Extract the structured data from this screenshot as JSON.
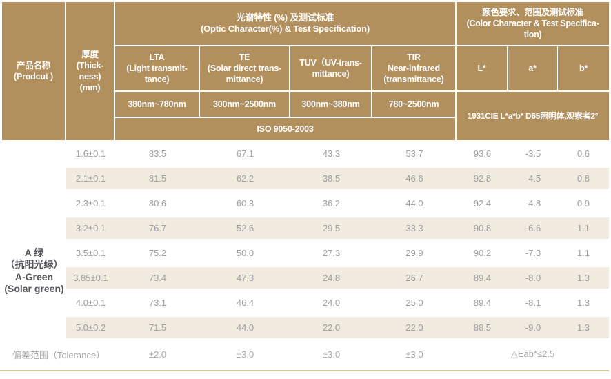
{
  "colors": {
    "header_bg": "#b2905e",
    "row_shade": "#f2ebdf",
    "body_text": "#9c9ea1",
    "product_text": "#55565a",
    "divider": "#ddc7a0"
  },
  "table": {
    "header": {
      "product": "产品名称\n(Prodcut )",
      "thickness": "厚度\n(Thick-\nness)\n(mm)",
      "optic_group": "光谱特性 (%) 及测试标准\n(Optic Character(%) & Test Specification)",
      "color_group": "颜色要求、范围及测试标准\n(Color Character & Test Specifica-\ntion)",
      "col_lta": "LTA\n(Light transmit-\ntance)",
      "col_te": "TE\n(Solar direct trans-\nmittance)",
      "col_tuv": "TUV（UV-trans-\nmittance)",
      "col_tir": "TIR\nNear-infrared\n(transmittance)",
      "col_l": "L*",
      "col_a": "a*",
      "col_b": "b*",
      "range_lta": "380nm~780nm",
      "range_te": "300nm~2500nm",
      "range_tuv": "300nm~380nm",
      "range_tir": "780~2500nm",
      "iso": "ISO 9050-2003",
      "cie": "1931CIE L*a*b* D65照明体,观察者2°"
    },
    "product_name": "A 绿\n（抗阳光绿）\nA-Green\n(Solar green)",
    "rows": [
      {
        "thickness": "1.6±0.1",
        "lta": "83.5",
        "te": "67.1",
        "tuv": "43.3",
        "tir": "53.7",
        "L": "93.6",
        "a": "-3.5",
        "b": "0.6"
      },
      {
        "thickness": "2.1±0.1",
        "lta": "81.5",
        "te": "62.2",
        "tuv": "38.5",
        "tir": "46.6",
        "L": "92.8",
        "a": "-4.5",
        "b": "0.8"
      },
      {
        "thickness": "2.3±0.1",
        "lta": "80.6",
        "te": "60.3",
        "tuv": "36.2",
        "tir": "44.0",
        "L": "92.4",
        "a": "-4.8",
        "b": "0.9"
      },
      {
        "thickness": "3.2±0.1",
        "lta": "76.7",
        "te": "52.6",
        "tuv": "29.5",
        "tir": "33.3",
        "L": "90.8",
        "a": "-6.6",
        "b": "1.1"
      },
      {
        "thickness": "3.5±0.1",
        "lta": "75.2",
        "te": "50.0",
        "tuv": "27.3",
        "tir": "29.9",
        "L": "90.2",
        "a": "-7.3",
        "b": "1.1"
      },
      {
        "thickness": "3.85±0.1",
        "lta": "73.4",
        "te": "47.3",
        "tuv": "24.8",
        "tir": "26.7",
        "L": "89.4",
        "a": "-8.0",
        "b": "1.3"
      },
      {
        "thickness": "4.0±0.1",
        "lta": "73.1",
        "te": "46.4",
        "tuv": "24.0",
        "tir": "25.0",
        "L": "89.4",
        "a": "-8.1",
        "b": "1.3"
      },
      {
        "thickness": "5.0±0.2",
        "lta": "71.5",
        "te": "44.0",
        "tuv": "22.0",
        "tir": "22.0",
        "L": "88.5",
        "a": "-9.0",
        "b": "1.3"
      }
    ],
    "tolerance": {
      "label": "偏差范围（Tolerance）",
      "lta": "±2.0",
      "te": "±3.0",
      "tuv": "±3.0",
      "tir": "±3.0",
      "eab": "△Eab*≤2.5"
    }
  }
}
